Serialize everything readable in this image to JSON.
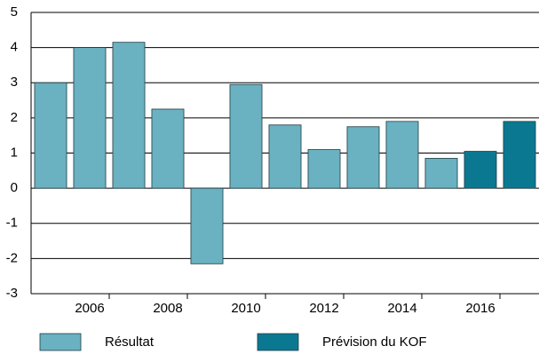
{
  "chart_data": {
    "type": "bar",
    "categories": [
      null,
      "2006",
      null,
      "2008",
      null,
      "2010",
      null,
      "2012",
      null,
      "2014",
      null,
      "2016",
      null
    ],
    "series": [
      {
        "name": "Résultat",
        "color": "#6ab1c1",
        "values": [
          3.0,
          4.0,
          4.15,
          2.25,
          -2.15,
          2.95,
          1.8,
          1.1,
          1.75,
          1.9,
          0.85,
          null,
          null
        ]
      },
      {
        "name": "Prévision du KOF",
        "color": "#0b7892",
        "values": [
          null,
          null,
          null,
          null,
          null,
          null,
          null,
          null,
          null,
          null,
          null,
          1.05,
          1.9
        ]
      }
    ],
    "ylim": [
      -3,
      5
    ],
    "yticks": [
      -3,
      -2,
      -1,
      0,
      1,
      2,
      3,
      4,
      5
    ],
    "grid": true
  }
}
